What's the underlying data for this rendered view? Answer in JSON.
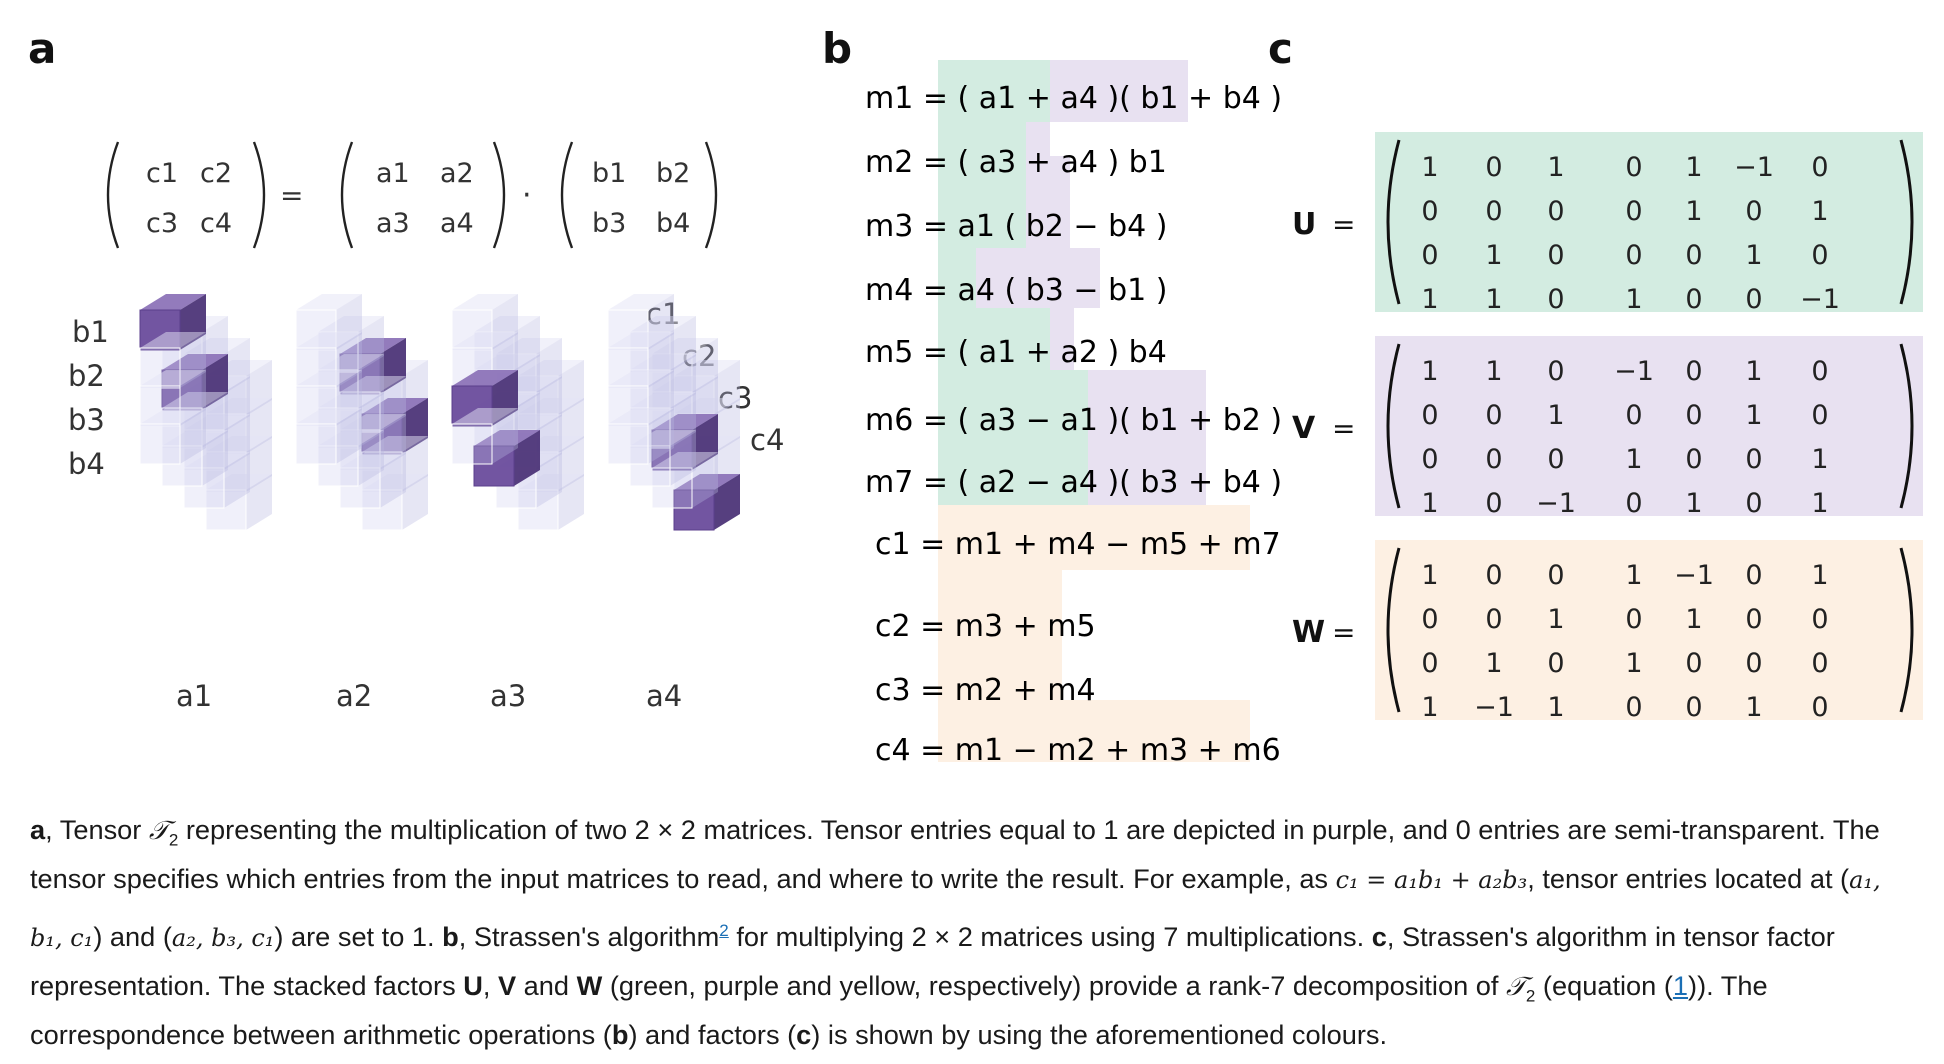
{
  "panels": {
    "a": "a",
    "b": "b",
    "c": "c"
  },
  "panel_a": {
    "c_matrix": [
      "c1",
      "c2",
      "c3",
      "c4"
    ],
    "a_matrix": [
      "a1",
      "a2",
      "a3",
      "a4"
    ],
    "b_matrix": [
      "b1",
      "b2",
      "b3",
      "b4"
    ],
    "equals": "=",
    "dot": "·",
    "b_axis": [
      "b1",
      "b2",
      "b3",
      "b4"
    ],
    "c_axis": [
      "c1",
      "c2",
      "c3",
      "c4"
    ],
    "a_axis": [
      "a1",
      "a2",
      "a3",
      "a4"
    ]
  },
  "panel_b": {
    "m_equations": [
      "m1 = ( a1 + a4 )( b1 + b4 )",
      "m2 = ( a3 + a4 ) b1",
      "m3 = a1 ( b2 − b4 )",
      "m4 = a4 ( b3 − b1 )",
      "m5 = ( a1 + a2 ) b4",
      "m6 = ( a3 − a1 )( b1 + b2 )",
      "m7 = ( a2 − a4 )( b3 + b4 )"
    ],
    "c_equations": [
      "c1 = m1 + m4 − m5 + m7",
      "c2 = m3 + m5",
      "c3 = m2 + m4",
      "c4 = m1 − m2 + m3 + m6"
    ]
  },
  "panel_c": {
    "matrices": [
      {
        "name": "U",
        "eq": "=",
        "color": "#d3ece1",
        "rows": [
          [
            "1",
            "0",
            "1",
            "0",
            "1",
            "−1",
            "0"
          ],
          [
            "0",
            "0",
            "0",
            "0",
            "1",
            "0",
            "1"
          ],
          [
            "0",
            "1",
            "0",
            "0",
            "0",
            "1",
            "0"
          ],
          [
            "1",
            "1",
            "0",
            "1",
            "0",
            "0",
            "−1"
          ]
        ]
      },
      {
        "name": "V",
        "eq": "=",
        "color": "#e8e1f1",
        "rows": [
          [
            "1",
            "1",
            "0",
            "−1",
            "0",
            "1",
            "0"
          ],
          [
            "0",
            "0",
            "1",
            "0",
            "0",
            "1",
            "0"
          ],
          [
            "0",
            "0",
            "0",
            "1",
            "0",
            "0",
            "1"
          ],
          [
            "1",
            "0",
            "−1",
            "0",
            "1",
            "0",
            "1"
          ]
        ]
      },
      {
        "name": "W",
        "eq": "=",
        "color": "#fdf0e3",
        "rows": [
          [
            "1",
            "0",
            "0",
            "1",
            "−1",
            "0",
            "1"
          ],
          [
            "0",
            "0",
            "1",
            "0",
            "1",
            "0",
            "0"
          ],
          [
            "0",
            "1",
            "0",
            "1",
            "0",
            "0",
            "0"
          ],
          [
            "1",
            "−1",
            "1",
            "0",
            "0",
            "1",
            "0"
          ]
        ]
      }
    ]
  },
  "colors": {
    "green": "#d3ece1",
    "purple": "#e8e1f1",
    "yellow": "#fdf0e3",
    "cube_purple": "#6a4c9c",
    "link": "#1b6fb5"
  },
  "caption": {
    "p1_label": "a",
    "p1_a": ", Tensor ",
    "tensor": "𝒯",
    "tensor_sub": "2",
    "p1_b": " representing the multiplication of two 2 × 2 matrices. Tensor entries equal to 1 are depicted in purple, and 0 entries are semi-transparent. The tensor specifies which entries from the input matrices to read, and where to write the result. For example, as ",
    "example_formula": "c₁ = a₁b₁ + a₂b₃",
    "p1_c": ", tensor entries located at (",
    "loc1": "a₁, b₁, c₁",
    "p1_d": ") and (",
    "loc2": "a₂, b₃, c₁",
    "p1_e": ") are set to 1. ",
    "p2_label": "b",
    "p2_a": ", Strassen's algorithm",
    "ref": "2",
    "p2_b": " for multiplying 2 × 2 matrices using 7 multiplications. ",
    "p3_label": "c",
    "p3_a": ", Strassen's algorithm in tensor factor representation. The stacked factors ",
    "U": "U",
    "comma_sep": ", ",
    "V": "V",
    "and": " and ",
    "W": "W",
    "p3_b": " (green, purple and yellow, respectively) provide a rank-7 decomposition of ",
    "p3_c": " (equation (",
    "eq_ref": "1",
    "p3_d": ")). The correspondence between arithmetic operations (",
    "b_ref": "b",
    "p3_e": ") and factors (",
    "c_ref": "c",
    "p3_f": ") is shown by using the aforementioned colours."
  }
}
